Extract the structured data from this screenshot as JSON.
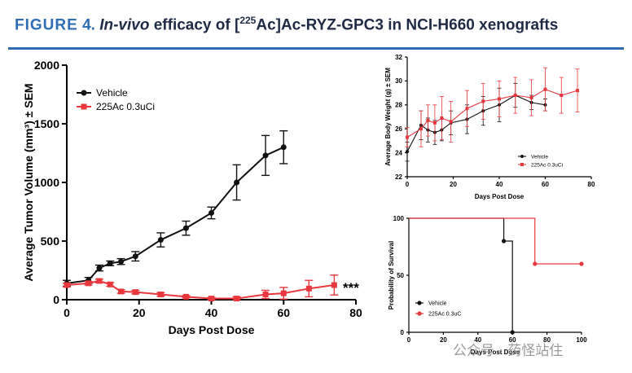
{
  "figure": {
    "label": "FIGURE",
    "number": "4",
    "separator": ".",
    "title_italic": "In-vivo",
    "title_part1": "efficacy of [",
    "title_superscript": "225",
    "title_part2": "Ac]Ac-RYZ-GPC3 in NCI-H660 xenografts"
  },
  "colors": {
    "vehicle": "#111111",
    "treated": "#e8383d",
    "accent": "#2f6db5"
  },
  "watermark": "公众号 · 药怪站住",
  "chart_data": [
    {
      "id": "tumor",
      "type": "line",
      "title": "",
      "xlabel": "Days Post Dose",
      "ylabel": "Average Tumor Volume (mm³) ± SEM",
      "xlim": [
        0,
        80
      ],
      "ylim": [
        0,
        2000
      ],
      "xticks": [
        "0",
        "20",
        "40",
        "60",
        "80"
      ],
      "yticks": [
        "0",
        "500",
        "1000",
        "1500",
        "2000"
      ],
      "legend": [
        "Vehicle",
        "225Ac 0.3uCi"
      ],
      "legend_position": "top-left",
      "annotation": "***",
      "series": [
        {
          "name": "Vehicle",
          "color": "#111111",
          "marker": "circle",
          "x": [
            0,
            6,
            9,
            12,
            15,
            19,
            26,
            33,
            40,
            47,
            55,
            60
          ],
          "y": [
            140,
            165,
            270,
            310,
            325,
            370,
            510,
            610,
            740,
            1000,
            1230,
            1300
          ],
          "err": [
            25,
            25,
            25,
            20,
            25,
            40,
            60,
            60,
            50,
            150,
            170,
            140
          ]
        },
        {
          "name": "225Ac 0.3uCi",
          "color": "#e8383d",
          "marker": "square",
          "x": [
            0,
            6,
            9,
            12,
            15,
            19,
            26,
            33,
            40,
            47,
            55,
            60,
            67,
            74
          ],
          "y": [
            125,
            140,
            160,
            130,
            70,
            65,
            45,
            25,
            10,
            10,
            45,
            55,
            95,
            125
          ],
          "err": [
            15,
            15,
            15,
            15,
            15,
            15,
            15,
            10,
            10,
            15,
            35,
            50,
            70,
            85
          ]
        }
      ]
    },
    {
      "id": "weight",
      "type": "line",
      "title": "",
      "xlabel": "Days Post Dose",
      "ylabel": "Average Body Weight (g) ± SEM",
      "xlim": [
        0,
        80
      ],
      "ylim": [
        22,
        32
      ],
      "xticks": [
        "0",
        "20",
        "40",
        "60",
        "80"
      ],
      "yticks": [
        "22",
        "24",
        "26",
        "28",
        "30",
        "32"
      ],
      "legend": [
        "Vehicle",
        "225Ac 0.3uCi"
      ],
      "legend_position": "bottom-right",
      "series": [
        {
          "name": "Vehicle",
          "color": "#111111",
          "marker": "circle",
          "x": [
            0,
            6,
            9,
            12,
            15,
            19,
            26,
            33,
            40,
            47,
            54,
            60
          ],
          "y": [
            24.1,
            26.3,
            25.9,
            25.7,
            25.9,
            26.5,
            26.8,
            27.5,
            28.0,
            28.8,
            28.2,
            28.0
          ],
          "err": [
            0.8,
            1.2,
            1.0,
            1.0,
            0.9,
            1.0,
            1.2,
            1.2,
            1.4,
            1.0,
            0.6,
            0.5
          ]
        },
        {
          "name": "225Ac 0.3uCi",
          "color": "#e8383d",
          "marker": "square",
          "x": [
            0,
            6,
            9,
            12,
            15,
            19,
            26,
            33,
            40,
            47,
            54,
            60,
            67,
            74
          ],
          "y": [
            25.3,
            26.0,
            26.7,
            26.5,
            26.9,
            26.6,
            27.7,
            28.3,
            28.5,
            28.8,
            28.6,
            29.3,
            28.8,
            29.2
          ],
          "err": [
            0.8,
            1.5,
            1.3,
            1.5,
            1.8,
            1.7,
            1.5,
            1.5,
            1.5,
            1.5,
            1.5,
            1.8,
            1.5,
            1.8
          ]
        }
      ]
    },
    {
      "id": "survival",
      "type": "line",
      "title": "",
      "xlabel": "Days Post Dose",
      "ylabel": "Probability of Survival",
      "xlim": [
        0,
        100
      ],
      "ylim": [
        0,
        100
      ],
      "xticks": [
        "0",
        "20",
        "40",
        "60",
        "80",
        "100"
      ],
      "yticks": [
        "0",
        "50",
        "100"
      ],
      "legend": [
        "Vehicle",
        "225Ac 0.3uC"
      ],
      "legend_position": "bottom-left",
      "series": [
        {
          "name": "Vehicle",
          "color": "#111111",
          "marker": "circle",
          "step": true,
          "x": [
            0,
            55,
            55,
            60,
            60
          ],
          "y": [
            100,
            100,
            80,
            80,
            0
          ],
          "marker_points": [
            [
              55,
              80
            ],
            [
              60,
              0
            ]
          ]
        },
        {
          "name": "225Ac 0.3uC",
          "color": "#e8383d",
          "marker": "circle",
          "step": true,
          "x": [
            0,
            73,
            73,
            100
          ],
          "y": [
            100,
            100,
            60,
            60
          ],
          "marker_points": [
            [
              73,
              60
            ],
            [
              100,
              60
            ]
          ]
        }
      ]
    }
  ]
}
